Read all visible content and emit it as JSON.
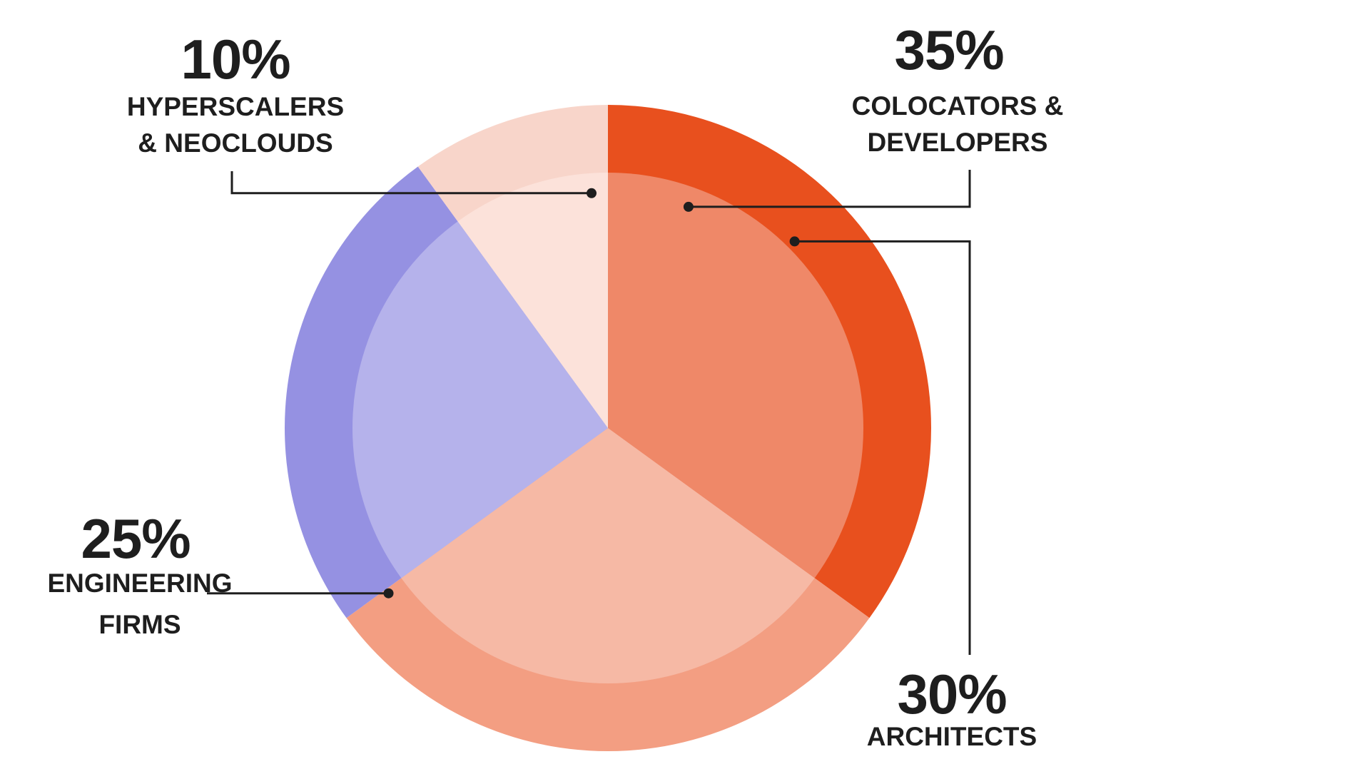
{
  "chart_data": {
    "type": "pie",
    "title": "",
    "start_angle_deg": 0,
    "direction": "clockwise",
    "slices": [
      {
        "label": "COLOCATORS & DEVELOPERS",
        "label_lines": [
          "COLOCATORS &",
          "DEVELOPERS"
        ],
        "value": 35,
        "value_label": "35%",
        "outer_color": "#E8501E",
        "inner_color": "#EF8868",
        "label_side": "right-top"
      },
      {
        "label": "ARCHITECTS",
        "label_lines": [
          "ARCHITECTS"
        ],
        "value": 30,
        "value_label": "30%",
        "outer_color": "#F39E82",
        "inner_color": "#F6B9A5",
        "label_side": "right-bottom"
      },
      {
        "label": "ENGINEERING FIRMS",
        "label_lines": [
          "ENGINEERING",
          "FIRMS"
        ],
        "value": 25,
        "value_label": "25%",
        "outer_color": "#9591E2",
        "inner_color": "#B5B2EB",
        "label_side": "left"
      },
      {
        "label": "HYPERSCALERS & NEOCLOUDS",
        "label_lines": [
          "HYPERSCALERS",
          "& NEOCLOUDS"
        ],
        "value": 10,
        "value_label": "10%",
        "outer_color": "#F8D5CA",
        "inner_color": "#FCE2DA",
        "label_side": "left-top"
      }
    ]
  }
}
